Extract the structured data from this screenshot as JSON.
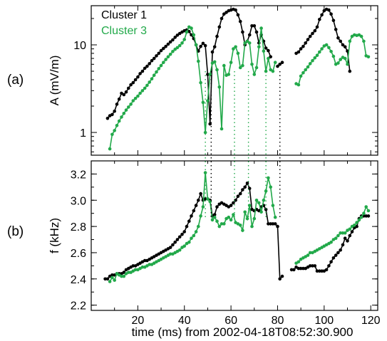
{
  "chart_data": {
    "type": "line",
    "xlabel": "time (ms) from 2002-04-18T08:52:30.900",
    "xlim": [
      0,
      123
    ],
    "xticks": [
      20,
      40,
      60,
      80,
      100,
      120
    ],
    "colors": {
      "Cluster 1": "#000000",
      "Cluster 3": "#22a94a"
    },
    "legend": [
      "Cluster 1",
      "Cluster 3"
    ],
    "panels": [
      {
        "label": "(a)",
        "ylabel": "A (mV/m)",
        "yscale": "log",
        "ylim": [
          0.55,
          28
        ],
        "yticks": [
          1,
          10
        ],
        "ytick_labels": [
          "1",
          "10"
        ],
        "series": [
          {
            "name": "Cluster 1",
            "x": [
              7,
              8,
              9,
              10,
              11,
              12,
              13,
              14,
              15,
              16,
              17,
              18,
              19,
              20,
              21,
              22,
              23,
              24,
              25,
              26,
              27,
              28,
              29,
              30,
              31,
              32,
              33,
              34,
              35,
              36,
              37,
              38,
              39,
              40,
              41,
              42,
              43,
              44,
              45,
              46,
              47,
              48,
              49,
              50,
              51,
              52,
              53,
              54,
              55,
              56,
              57,
              58,
              59,
              60,
              61,
              62,
              63,
              64,
              65,
              66,
              67,
              68,
              69,
              70,
              71,
              72,
              73,
              74,
              75,
              76,
              77,
              80,
              81,
              82,
              88,
              89,
              90,
              91,
              92,
              93,
              94,
              95,
              96,
              97,
              98,
              99,
              100,
              101,
              102,
              103,
              104,
              105,
              106,
              107,
              108,
              109,
              110,
              111
            ],
            "y": [
              1.45,
              1.55,
              1.6,
              1.75,
              2.1,
              2.4,
              2.8,
              2.7,
              2.9,
              3.2,
              3.5,
              3.7,
              4.0,
              4.3,
              4.7,
              5.0,
              5.4,
              5.7,
              6.1,
              6.6,
              7.0,
              7.5,
              8.0,
              8.6,
              9.1,
              9.6,
              10.2,
              10.8,
              11.4,
              12.2,
              12.9,
              13.5,
              14.0,
              14.5,
              14.8,
              14.2,
              13.0,
              11.8,
              10.0,
              8.5,
              9.6,
              10.4,
              9.8,
              4.6,
              1.25,
              8.3,
              9.5,
              12.5,
              16.0,
              20.0,
              22.5,
              23.5,
              24.5,
              25.0,
              25.5,
              25.0,
              22.0,
              18.5,
              14.0,
              10.0,
              11.0,
              13.0,
              16.5,
              16.5,
              14.0,
              10.5,
              13.0,
              11.0,
              9.2,
              8.6,
              7.3,
              5.7,
              6.0,
              6.3,
              8.0,
              8.3,
              9.0,
              9.6,
              10.5,
              11.5,
              12.5,
              13.5,
              14.5,
              16.0,
              19.5,
              22.0,
              24.5,
              25.5,
              25.0,
              22.5,
              19.0,
              15.0,
              12.0,
              11.0,
              10.0,
              9.5,
              8.5,
              5.0
            ]
          },
          {
            "name": "Cluster 3",
            "x": [
              8,
              9,
              10,
              11,
              12,
              13,
              14,
              15,
              16,
              17,
              18,
              19,
              20,
              21,
              22,
              23,
              24,
              25,
              26,
              27,
              28,
              29,
              30,
              31,
              32,
              33,
              34,
              35,
              36,
              37,
              38,
              39,
              40,
              41,
              42,
              43,
              44,
              45,
              46,
              47,
              48,
              49,
              50,
              51,
              52,
              53,
              54,
              55,
              56,
              57,
              58,
              59,
              60,
              61,
              62,
              63,
              64,
              65,
              66,
              67,
              68,
              69,
              70,
              71,
              72,
              73,
              74,
              75,
              76,
              77,
              78,
              79,
              88,
              89,
              90,
              91,
              92,
              93,
              94,
              95,
              96,
              97,
              98,
              99,
              100,
              101,
              102,
              103,
              104,
              105,
              106,
              107,
              108,
              109,
              110,
              111,
              112,
              113,
              114,
              115,
              116,
              117,
              118,
              119
            ],
            "y": [
              0.65,
              0.95,
              1.05,
              1.2,
              1.35,
              1.5,
              1.65,
              1.8,
              1.95,
              2.1,
              2.3,
              2.45,
              2.6,
              2.8,
              3.0,
              3.2,
              3.45,
              3.75,
              4.1,
              4.5,
              4.9,
              5.35,
              5.8,
              6.3,
              6.8,
              7.3,
              7.8,
              8.4,
              8.9,
              9.3,
              9.8,
              10.5,
              11.5,
              14.0,
              16.0,
              15.5,
              13.0,
              10.0,
              6.5,
              3.7,
              2.2,
              1.0,
              2.3,
              4.6,
              6.2,
              6.4,
              5.2,
              3.3,
              1.1,
              5.8,
              4.5,
              4.6,
              6.3,
              9.0,
              9.5,
              8.0,
              5.5,
              5.8,
              10.5,
              11.0,
              10.5,
              6.0,
              4.6,
              5.5,
              9.5,
              15.5,
              8.5,
              5.0,
              7.0,
              5.2,
              5.0,
              6.3,
              3.6,
              3.5,
              4.4,
              4.8,
              5.2,
              5.6,
              6.1,
              6.6,
              7.1,
              7.6,
              8.3,
              9.0,
              9.7,
              10.0,
              9.3,
              8.4,
              7.4,
              6.0,
              6.2,
              6.8,
              7.2,
              7.0,
              6.0,
              11.0,
              12.5,
              13.0,
              12.8,
              13.0,
              12.5,
              11.0,
              7.5,
              7.3
            ]
          }
        ]
      },
      {
        "label": "(b)",
        "ylabel": "f (kHz)",
        "yscale": "linear",
        "ylim": [
          2.16,
          3.3
        ],
        "yticks": [
          2.2,
          2.4,
          2.6,
          2.8,
          3.0,
          3.2
        ],
        "ytick_labels": [
          "2.2",
          "2.4",
          "2.6",
          "2.8",
          "3.0",
          "3.2"
        ],
        "series": [
          {
            "name": "Cluster 1",
            "x": [
              6,
              7,
              8,
              9,
              10,
              11,
              12,
              13,
              14,
              15,
              16,
              17,
              18,
              19,
              20,
              21,
              22,
              23,
              24,
              25,
              26,
              27,
              28,
              29,
              30,
              31,
              32,
              33,
              34,
              35,
              36,
              37,
              38,
              39,
              40,
              41,
              42,
              43,
              44,
              45,
              46,
              47,
              48,
              49,
              50,
              51,
              52,
              53,
              54,
              55,
              56,
              57,
              58,
              59,
              60,
              61,
              62,
              63,
              64,
              65,
              66,
              67,
              68,
              69,
              70,
              71,
              72,
              73,
              74,
              75,
              76,
              77,
              78,
              79,
              80,
              81,
              82,
              86,
              87,
              88,
              89,
              90,
              91,
              92,
              93,
              94,
              95,
              96,
              97,
              98,
              99,
              100,
              101,
              102,
              103,
              104,
              105,
              106,
              107,
              108,
              109,
              110,
              111,
              112,
              113,
              114,
              115,
              116,
              117,
              118,
              119
            ],
            "y": [
              2.4,
              2.4,
              2.42,
              2.43,
              2.43,
              2.44,
              2.44,
              2.44,
              2.45,
              2.47,
              2.48,
              2.49,
              2.5,
              2.5,
              2.51,
              2.52,
              2.53,
              2.54,
              2.54,
              2.55,
              2.56,
              2.57,
              2.58,
              2.59,
              2.6,
              2.61,
              2.62,
              2.63,
              2.64,
              2.66,
              2.68,
              2.7,
              2.72,
              2.74,
              2.76,
              2.8,
              2.84,
              2.88,
              2.92,
              2.96,
              3.0,
              3.05,
              3.0,
              3.01,
              3.01,
              3.0,
              2.88,
              2.89,
              2.95,
              2.97,
              2.98,
              2.97,
              2.96,
              2.95,
              2.96,
              2.98,
              3.0,
              3.03,
              3.05,
              3.08,
              3.1,
              3.13,
              3.09,
              2.93,
              2.92,
              2.93,
              2.92,
              2.95,
              2.96,
              2.93,
              2.82,
              2.82,
              2.82,
              2.82,
              2.8,
              2.4,
              2.42,
              2.47,
              2.47,
              2.49,
              2.48,
              2.48,
              2.48,
              2.48,
              2.49,
              2.5,
              2.5,
              2.5,
              2.46,
              2.46,
              2.46,
              2.46,
              2.47,
              2.5,
              2.53,
              2.56,
              2.58,
              2.6,
              2.62,
              2.66,
              2.71,
              2.69,
              2.73,
              2.76,
              2.79,
              2.8,
              2.86,
              2.88,
              2.88,
              2.88,
              2.88
            ]
          },
          {
            "name": "Cluster 3",
            "x": [
              8,
              9,
              10,
              11,
              12,
              13,
              14,
              15,
              16,
              17,
              18,
              19,
              20,
              21,
              22,
              23,
              24,
              25,
              26,
              27,
              28,
              29,
              30,
              31,
              32,
              33,
              34,
              35,
              36,
              37,
              38,
              39,
              40,
              41,
              42,
              43,
              44,
              45,
              46,
              47,
              48,
              49,
              50,
              51,
              52,
              53,
              54,
              55,
              56,
              57,
              58,
              59,
              60,
              61,
              62,
              63,
              64,
              65,
              66,
              67,
              68,
              69,
              70,
              71,
              72,
              73,
              74,
              75,
              76,
              77,
              78,
              79,
              88,
              89,
              90,
              91,
              92,
              93,
              94,
              95,
              96,
              97,
              98,
              99,
              100,
              101,
              102,
              103,
              104,
              105,
              106,
              107,
              108,
              109,
              110,
              111,
              112,
              113,
              114,
              115,
              116,
              117,
              118,
              119
            ],
            "y": [
              2.38,
              2.41,
              2.39,
              2.44,
              2.43,
              2.42,
              2.42,
              2.44,
              2.45,
              2.45,
              2.46,
              2.47,
              2.47,
              2.48,
              2.49,
              2.49,
              2.5,
              2.51,
              2.51,
              2.52,
              2.53,
              2.54,
              2.55,
              2.56,
              2.57,
              2.58,
              2.59,
              2.59,
              2.6,
              2.61,
              2.62,
              2.64,
              2.65,
              2.67,
              2.68,
              2.71,
              2.73,
              2.76,
              2.8,
              2.88,
              2.95,
              3.21,
              3.01,
              2.99,
              2.85,
              2.87,
              2.84,
              2.8,
              2.82,
              2.82,
              2.86,
              2.87,
              2.85,
              2.89,
              2.83,
              2.82,
              2.81,
              2.77,
              2.91,
              2.86,
              2.96,
              2.8,
              2.86,
              3.0,
              2.98,
              2.91,
              3.0,
              3.07,
              3.17,
              3.1,
              2.96,
              2.87,
              2.52,
              2.53,
              2.55,
              2.56,
              2.57,
              2.58,
              2.6,
              2.6,
              2.61,
              2.62,
              2.63,
              2.64,
              2.65,
              2.66,
              2.67,
              2.68,
              2.7,
              2.71,
              2.73,
              2.75,
              2.75,
              2.75,
              2.77,
              2.78,
              2.8,
              2.81,
              2.83,
              2.85,
              2.87,
              2.9,
              2.95,
              2.92
            ]
          }
        ]
      }
    ],
    "vlines": [
      {
        "x": 49,
        "color": "#22a94a"
      },
      {
        "x": 51.5,
        "color": "#000000"
      },
      {
        "x": 61.5,
        "color": "#22a94a"
      },
      {
        "x": 67.5,
        "color": "#22a94a"
      },
      {
        "x": 75,
        "color": "#22a94a"
      },
      {
        "x": 81,
        "color": "#000000"
      }
    ]
  }
}
